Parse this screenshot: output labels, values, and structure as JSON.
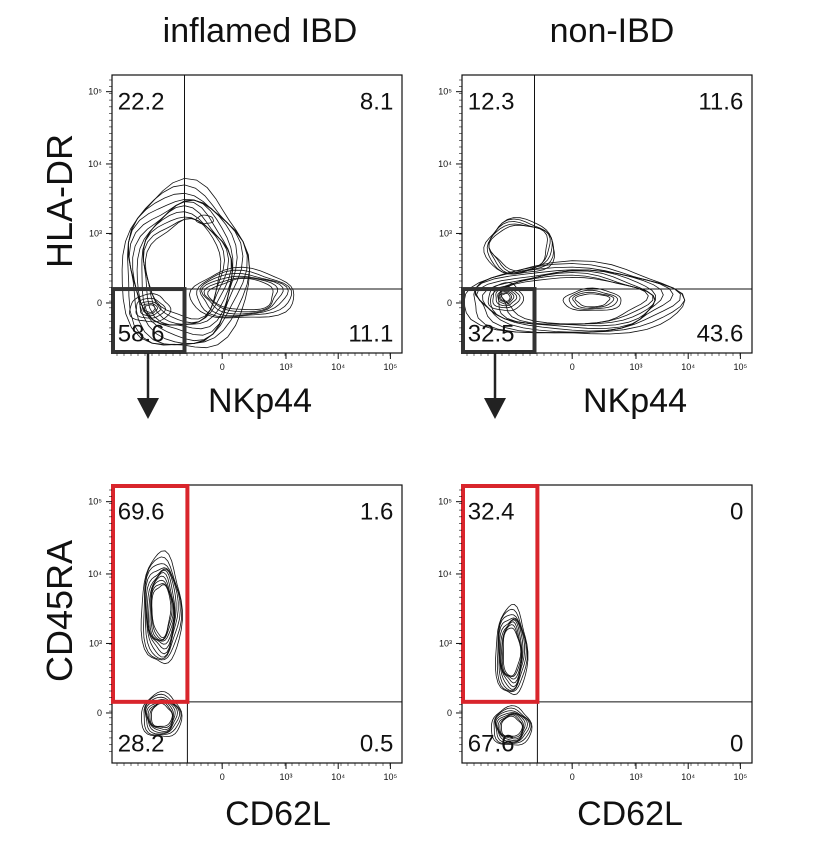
{
  "chart_data": [
    {
      "type": "contour",
      "title": "inflamed IBD",
      "ylabel": "HLA-DR",
      "xlabel": "NKp44",
      "x_scale": "biexponential",
      "y_scale": "biexponential",
      "x_ticks": [
        "0",
        "10³",
        "10⁴",
        "10⁵"
      ],
      "y_ticks": [
        "0",
        "10³",
        "10⁴",
        "10⁵"
      ],
      "quadrants": {
        "top_left": "22.2",
        "top_right": "8.1",
        "bottom_left": "58.6",
        "bottom_right": "11.1"
      },
      "gate": "bottom_left",
      "gate_color": "#333333"
    },
    {
      "type": "contour",
      "title": "non-IBD",
      "ylabel": "",
      "xlabel": "NKp44",
      "x_scale": "biexponential",
      "y_scale": "biexponential",
      "x_ticks": [
        "0",
        "10³",
        "10⁴",
        "10⁵"
      ],
      "y_ticks": [
        "0",
        "10³",
        "10⁴",
        "10⁵"
      ],
      "quadrants": {
        "top_left": "12.3",
        "top_right": "11.6",
        "bottom_left": "32.5",
        "bottom_right": "43.6"
      },
      "gate": "bottom_left",
      "gate_color": "#333333"
    },
    {
      "type": "contour",
      "title": "",
      "ylabel": "CD45RA",
      "xlabel": "CD62L",
      "x_scale": "biexponential",
      "y_scale": "biexponential",
      "x_ticks": [
        "0",
        "10³",
        "10⁴",
        "10⁵"
      ],
      "y_ticks": [
        "0",
        "10³",
        "10⁴",
        "10⁵"
      ],
      "quadrants": {
        "top_left": "69.6",
        "top_right": "1.6",
        "bottom_left": "28.2",
        "bottom_right": "0.5"
      },
      "gate": "top_left",
      "gate_color": "#d9252c"
    },
    {
      "type": "contour",
      "title": "",
      "ylabel": "",
      "xlabel": "CD62L",
      "x_scale": "biexponential",
      "y_scale": "biexponential",
      "x_ticks": [
        "0",
        "10³",
        "10⁴",
        "10⁵"
      ],
      "y_ticks": [
        "0",
        "10³",
        "10⁴",
        "10⁵"
      ],
      "quadrants": {
        "top_left": "32.4",
        "top_right": "0",
        "bottom_left": "67.6",
        "bottom_right": "0"
      },
      "gate": "top_left",
      "gate_color": "#d9252c"
    }
  ]
}
